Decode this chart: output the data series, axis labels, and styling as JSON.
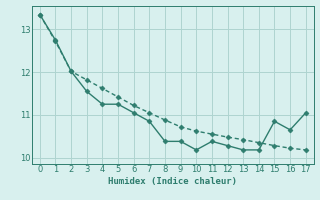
{
  "xlabel": "Humidex (Indice chaleur)",
  "x": [
    0,
    1,
    2,
    3,
    4,
    5,
    6,
    7,
    8,
    9,
    10,
    11,
    12,
    13,
    14,
    15,
    16,
    17
  ],
  "line1_y": [
    13.35,
    12.75,
    12.02,
    11.55,
    11.25,
    11.25,
    11.05,
    10.85,
    10.38,
    10.38,
    10.18,
    10.38,
    10.28,
    10.18,
    10.18,
    10.85,
    10.65,
    11.05
  ],
  "line2_y": [
    13.35,
    12.72,
    12.02,
    11.82,
    11.62,
    11.42,
    11.22,
    11.05,
    10.88,
    10.72,
    10.62,
    10.55,
    10.48,
    10.42,
    10.35,
    10.28,
    10.22,
    10.18
  ],
  "line_color": "#2e7d6e",
  "marker": "D",
  "marker_size": 2.5,
  "xlim": [
    -0.5,
    17.5
  ],
  "ylim": [
    9.85,
    13.55
  ],
  "yticks": [
    10,
    11,
    12,
    13
  ],
  "xticks": [
    0,
    1,
    2,
    3,
    4,
    5,
    6,
    7,
    8,
    9,
    10,
    11,
    12,
    13,
    14,
    15,
    16,
    17
  ],
  "bg_color": "#d8f0ee",
  "grid_color": "#aed4d0",
  "line_width": 1.0,
  "figwidth": 3.2,
  "figheight": 2.0,
  "dpi": 100
}
